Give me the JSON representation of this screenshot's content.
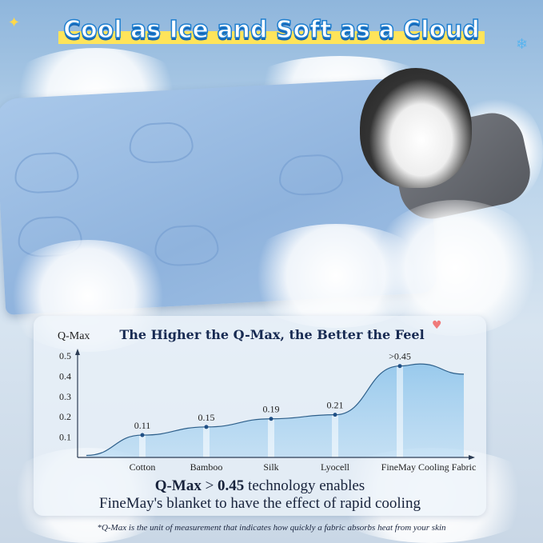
{
  "header": {
    "title": "Cool as Ice and Soft as a Cloud"
  },
  "chart_data": {
    "type": "area",
    "title": "The Higher the Q-Max, the Better the Feel",
    "ylabel": "Q-Max",
    "xlabel": "",
    "categories": [
      "Cotton",
      "Bamboo",
      "Silk",
      "Lyocell",
      "FineMay Cooling Fabric"
    ],
    "values": [
      0.11,
      0.15,
      0.19,
      0.21,
      0.45
    ],
    "data_labels": [
      "0.11",
      "0.15",
      "0.19",
      "0.21",
      ">0.45"
    ],
    "yticks": [
      "0.1",
      "0.2",
      "0.3",
      "0.4",
      "0.5"
    ],
    "ylim": [
      0,
      0.5
    ],
    "grid": false,
    "colors": {
      "fill": "#7fbde9",
      "line": "#2d5f8a",
      "title": "#172a52"
    }
  },
  "summary": {
    "bold1": "Q-Max",
    "mid": " > ",
    "bold2": "0.45",
    "rest1": " technology enables",
    "line2": "FineMay's blanket to have the effect of rapid cooling"
  },
  "footnote": "*Q-Max is the unit of measurement that indicates how quickly a fabric absorbs heat from your skin"
}
